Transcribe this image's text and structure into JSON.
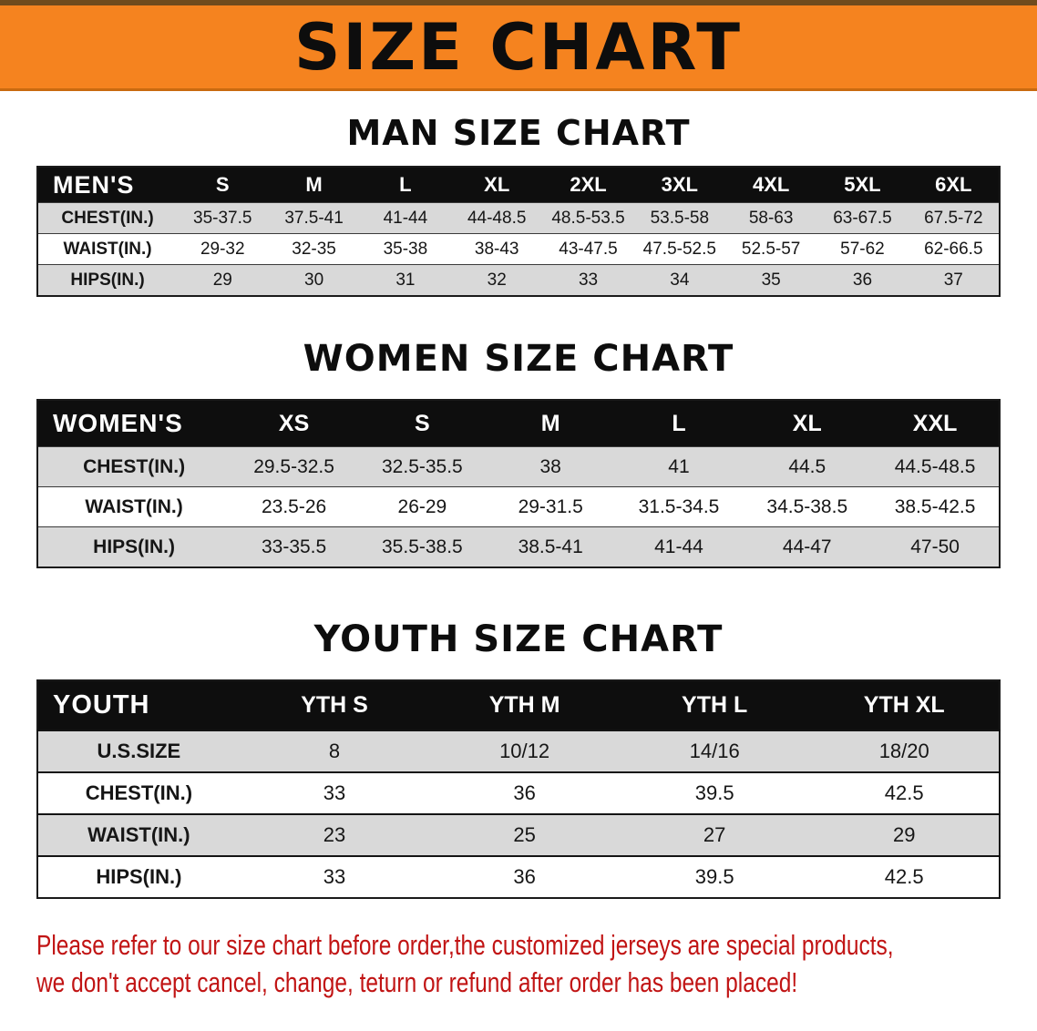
{
  "banner": {
    "title": "SIZE CHART"
  },
  "chart_data": [
    {
      "type": "table",
      "title": "MAN SIZE CHART",
      "corner_label": "MEN'S",
      "columns": [
        "S",
        "M",
        "L",
        "XL",
        "2XL",
        "3XL",
        "4XL",
        "5XL",
        "6XL"
      ],
      "rows": [
        {
          "label": "CHEST(IN.)",
          "values": [
            "35-37.5",
            "37.5-41",
            "41-44",
            "44-48.5",
            "48.5-53.5",
            "53.5-58",
            "58-63",
            "63-67.5",
            "67.5-72"
          ]
        },
        {
          "label": "WAIST(IN.)",
          "values": [
            "29-32",
            "32-35",
            "35-38",
            "38-43",
            "43-47.5",
            "47.5-52.5",
            "52.5-57",
            "57-62",
            "62-66.5"
          ]
        },
        {
          "label": "HIPS(IN.)",
          "values": [
            "29",
            "30",
            "31",
            "32",
            "33",
            "34",
            "35",
            "36",
            "37"
          ]
        }
      ]
    },
    {
      "type": "table",
      "title": "WOMEN SIZE CHART",
      "corner_label": "WOMEN'S",
      "columns": [
        "XS",
        "S",
        "M",
        "L",
        "XL",
        "XXL"
      ],
      "rows": [
        {
          "label": "CHEST(IN.)",
          "values": [
            "29.5-32.5",
            "32.5-35.5",
            "38",
            "41",
            "44.5",
            "44.5-48.5"
          ]
        },
        {
          "label": "WAIST(IN.)",
          "values": [
            "23.5-26",
            "26-29",
            "29-31.5",
            "31.5-34.5",
            "34.5-38.5",
            "38.5-42.5"
          ]
        },
        {
          "label": "HIPS(IN.)",
          "values": [
            "33-35.5",
            "35.5-38.5",
            "38.5-41",
            "41-44",
            "44-47",
            "47-50"
          ]
        }
      ]
    },
    {
      "type": "table",
      "title": "YOUTH SIZE CHART",
      "corner_label": "YOUTH",
      "columns": [
        "YTH S",
        "YTH M",
        "YTH L",
        "YTH XL"
      ],
      "rows": [
        {
          "label": "U.S.SIZE",
          "values": [
            "8",
            "10/12",
            "14/16",
            "18/20"
          ]
        },
        {
          "label": "CHEST(IN.)",
          "values": [
            "33",
            "36",
            "39.5",
            "42.5"
          ]
        },
        {
          "label": "WAIST(IN.)",
          "values": [
            "23",
            "25",
            "27",
            "29"
          ]
        },
        {
          "label": "HIPS(IN.)",
          "values": [
            "33",
            "36",
            "39.5",
            "42.5"
          ]
        }
      ]
    }
  ],
  "footer": {
    "line1": "Please refer to our size chart before order,the customized jerseys are special products,",
    "line2": "we don't accept cancel, change, teturn or refund after order has been placed!"
  },
  "colors": {
    "banner_bg": "#F5831F",
    "header_bg": "#0E0E0E",
    "row_alt_bg": "#D9D9D9",
    "border_color": "#1A1A1A",
    "footer_text": "#C11414",
    "title_text": "#0D0D0D"
  }
}
